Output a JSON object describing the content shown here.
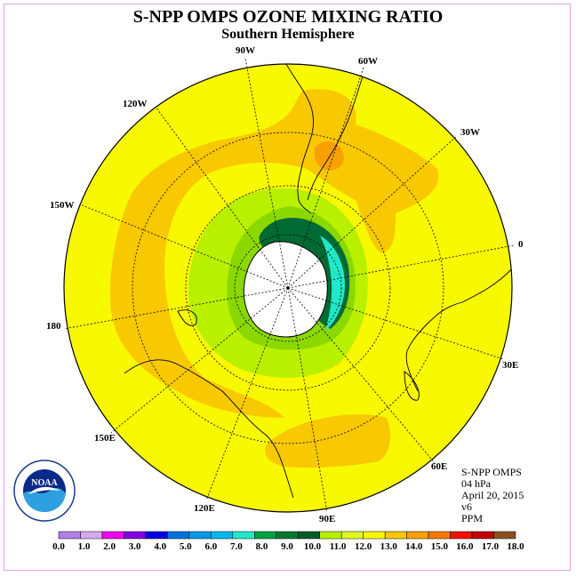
{
  "title": "S-NPP OMPS OZONE MIXING RATIO",
  "subtitle": "Southern Hemisphere",
  "longitude_labels": {
    "lon_90w": "90W",
    "lon_60w": "60W",
    "lon_30w": "30W",
    "lon_0": "0",
    "lon_30e": "30E",
    "lon_60e": "60E",
    "lon_90e": "90E",
    "lon_120e": "120E",
    "lon_150e": "150E",
    "lon_180": "180",
    "lon_150w": "150W",
    "lon_120w": "120W"
  },
  "info": {
    "instrument": "S-NPP OMPS",
    "level": "04 hPa",
    "date": "April 20, 2015",
    "version": "v6",
    "units": "PPM"
  },
  "logo_text": "NOAA",
  "colorbar": {
    "ticks": [
      "0.0",
      "1.0",
      "2.0",
      "3.0",
      "4.0",
      "5.0",
      "6.0",
      "7.0",
      "8.0",
      "9.0",
      "10.0",
      "11.0",
      "12.0",
      "13.0",
      "14.0",
      "15.0",
      "16.0",
      "17.0",
      "18.0"
    ],
    "colors": [
      "#b080e8",
      "#d8a8f0",
      "#f000f0",
      "#8000e0",
      "#0000e0",
      "#0070e0",
      "#0098e8",
      "#00b8f0",
      "#20e8c8",
      "#00a040",
      "#007830",
      "#005a28",
      "#b8f000",
      "#e0f820",
      "#f8f800",
      "#f8c800",
      "#f8a000",
      "#f87800",
      "#f01000",
      "#c00000",
      "#8a5020"
    ]
  },
  "colors": {
    "background_field": "#f8f800",
    "peak_band": "#f8c800",
    "inner_light_green": "#b8f000",
    "inner_mid_green": "#8ad800",
    "inner_dark_green": "#006a34",
    "inner_teal": "#20e8c8",
    "pole_region": "#ffffff"
  }
}
